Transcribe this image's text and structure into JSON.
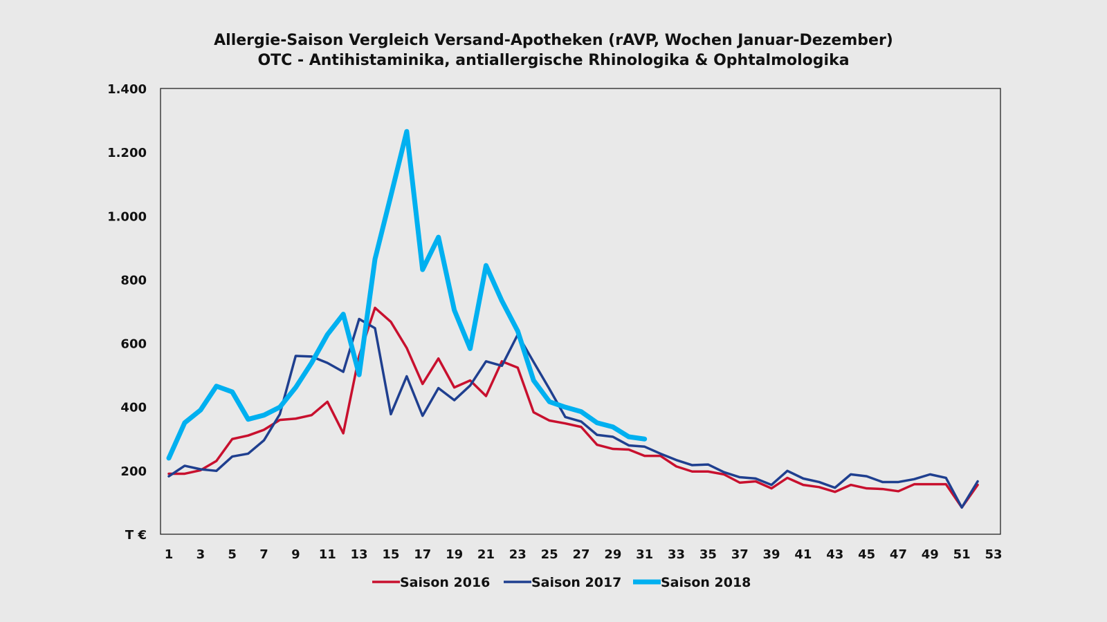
{
  "chart_data": {
    "type": "line",
    "title": "Allergie-Saison Vergleich Versand-Apotheken (rAVP, Wochen Januar-Dezember)",
    "subtitle": "OTC - Antihistaminika, antiallergische Rhinologika & Ophtalmologika",
    "ylabel": "",
    "xlabel": "",
    "y_unit_label": "T €",
    "ylim": [
      0,
      1400
    ],
    "xlim": [
      1,
      53
    ],
    "y_ticks": [
      {
        "v": 200,
        "label": "200"
      },
      {
        "v": 400,
        "label": "400"
      },
      {
        "v": 600,
        "label": "600"
      },
      {
        "v": 800,
        "label": "800"
      },
      {
        "v": 1000,
        "label": "1.000"
      },
      {
        "v": 1200,
        "label": "1.200"
      },
      {
        "v": 1400,
        "label": "1.400"
      }
    ],
    "x_ticks": [
      1,
      3,
      5,
      7,
      9,
      11,
      13,
      15,
      17,
      19,
      21,
      23,
      25,
      27,
      29,
      31,
      33,
      35,
      37,
      39,
      41,
      43,
      45,
      47,
      49,
      51,
      53
    ],
    "grid": false,
    "legend": "bottom",
    "series": [
      {
        "name": "Saison 2016",
        "color": "#c8102e",
        "values": [
          190,
          190,
          201,
          230,
          299,
          310,
          328,
          359,
          363,
          374,
          416,
          317,
          560,
          711,
          667,
          585,
          472,
          552,
          461,
          483,
          434,
          543,
          523,
          383,
          357,
          348,
          337,
          281,
          268,
          266,
          246,
          246,
          213,
          197,
          197,
          188,
          162,
          166,
          144,
          177,
          155,
          148,
          133,
          155,
          144,
          142,
          135,
          157,
          157,
          157,
          84,
          155
        ]
      },
      {
        "name": "Saison 2017",
        "color": "#1f3f8f",
        "values": [
          182,
          215,
          204,
          199,
          244,
          253,
          295,
          377,
          560,
          558,
          538,
          510,
          676,
          647,
          377,
          496,
          372,
          459,
          421,
          467,
          543,
          529,
          627,
          541,
          456,
          368,
          354,
          312,
          306,
          279,
          275,
          253,
          233,
          217,
          219,
          195,
          179,
          175,
          155,
          199,
          175,
          164,
          146,
          188,
          182,
          164,
          164,
          173,
          188,
          177,
          84,
          166
        ]
      },
      {
        "name": "Saison 2018",
        "color": "#00b0f0",
        "values": [
          239,
          350,
          390,
          465,
          447,
          361,
          374,
          399,
          461,
          538,
          627,
          691,
          501,
          864,
          1063,
          1265,
          831,
          933,
          704,
          583,
          844,
          733,
          638,
          483,
          416,
          399,
          385,
          350,
          337,
          306,
          299
        ]
      }
    ]
  }
}
